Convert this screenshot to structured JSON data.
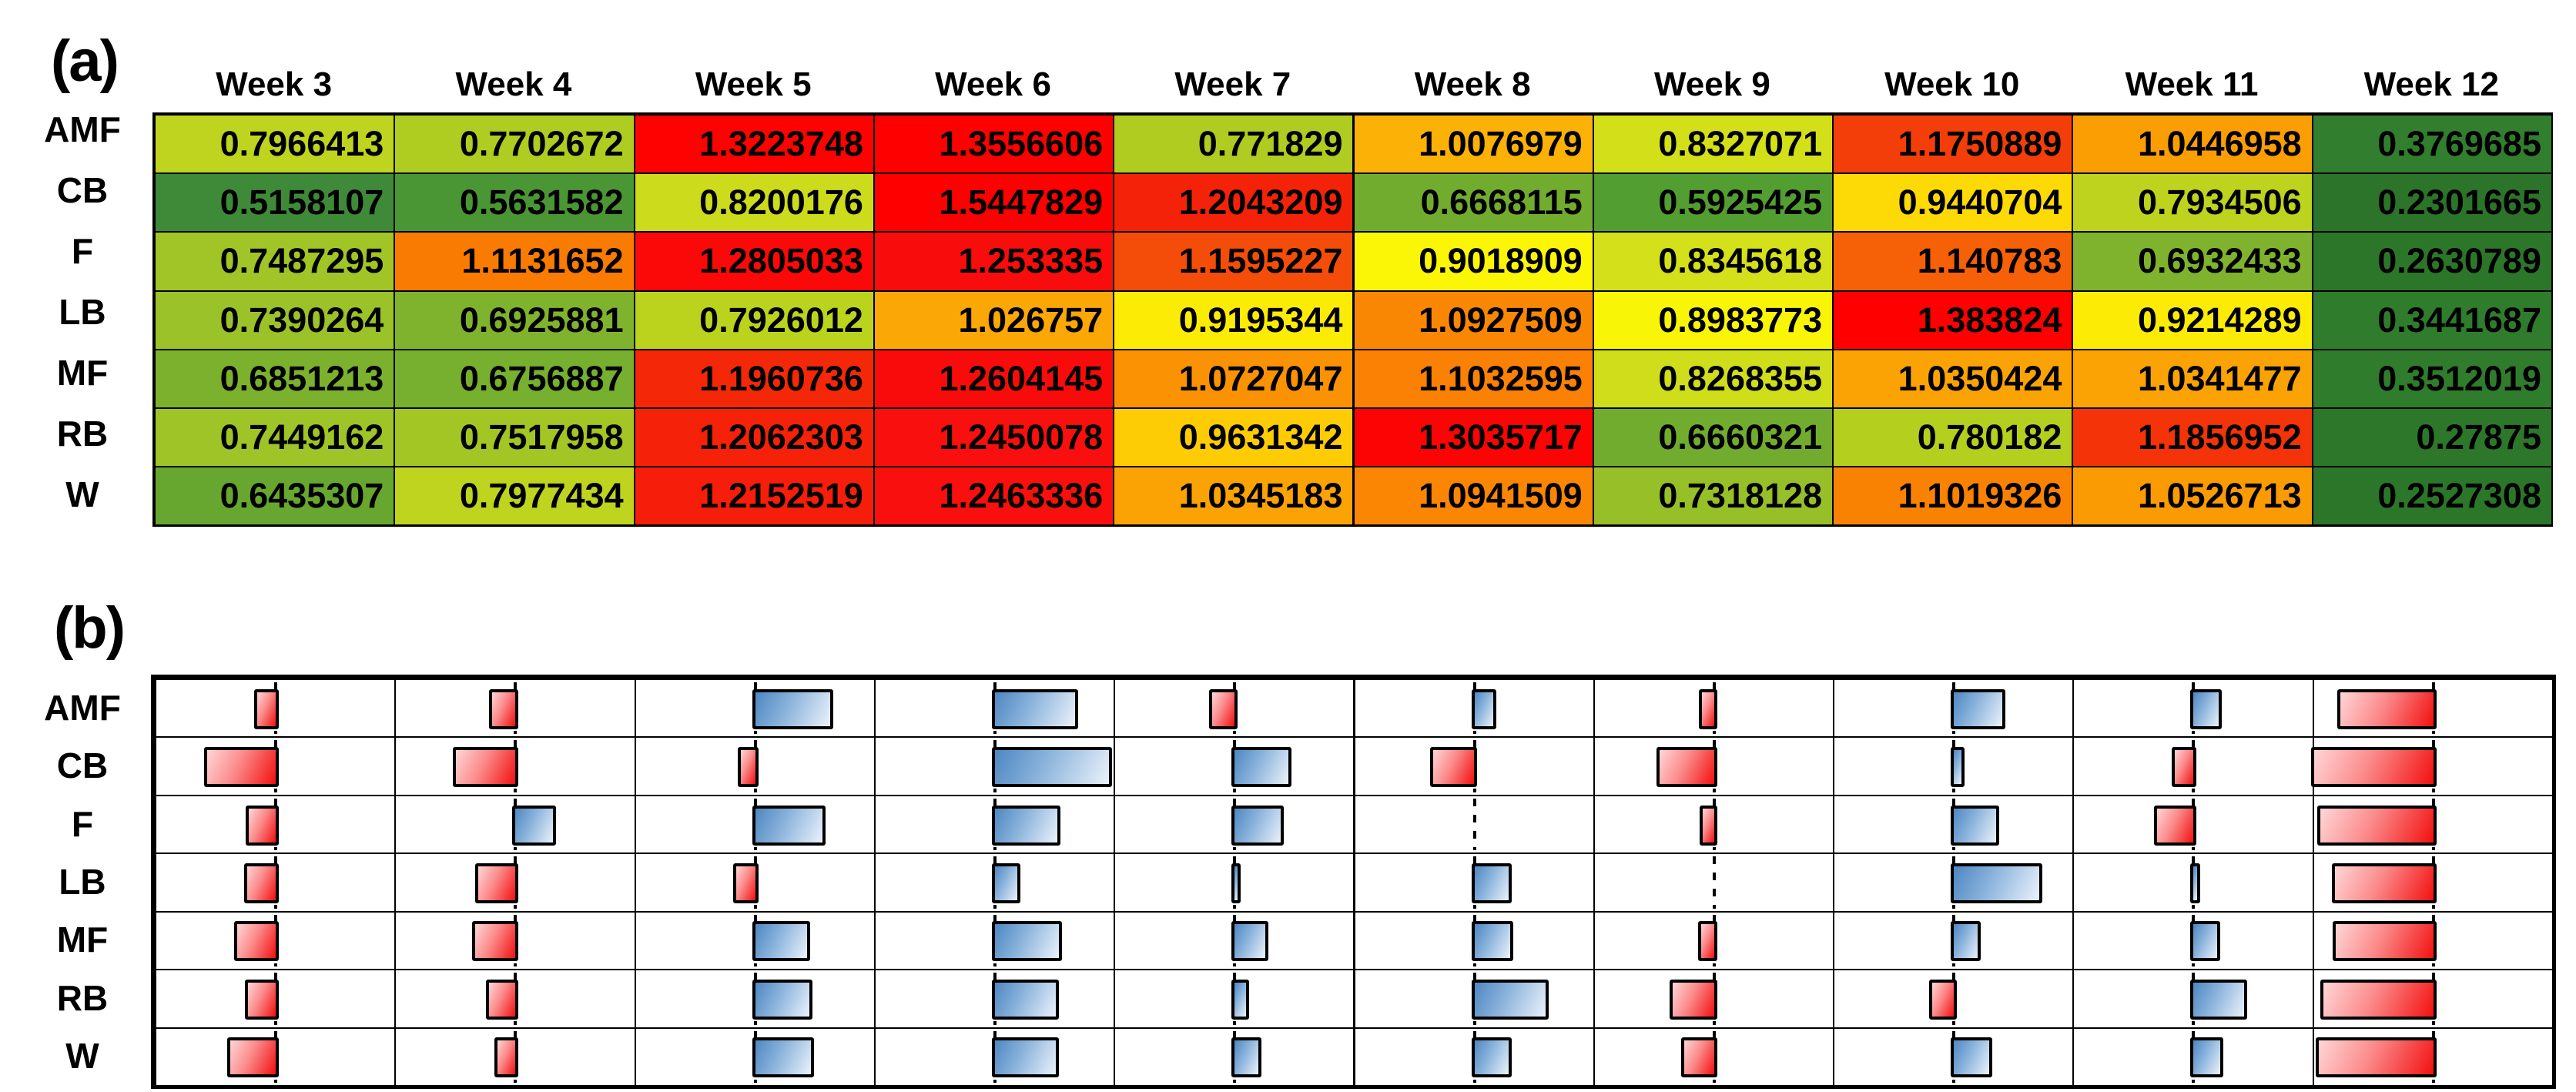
{
  "figure": {
    "panel_a_label": "(a)",
    "panel_b_label": "(b)"
  },
  "chart_data": [
    {
      "type": "heatmap",
      "title": "(a)",
      "columns": [
        "Week 3",
        "Week 4",
        "Week 5",
        "Week 6",
        "Week 7",
        "Week 8",
        "Week 9",
        "Week 10",
        "Week 11",
        "Week 12"
      ],
      "rows": [
        "AMF",
        "CB",
        "F",
        "LB",
        "MF",
        "RB",
        "W"
      ],
      "values": [
        [
          "0.7966413",
          "0.7702672",
          "1.3223748",
          "1.3556606",
          "0.771829",
          "1.0076979",
          "0.8327071",
          "1.1750889",
          "1.0446958",
          "0.3769685"
        ],
        [
          "0.5158107",
          "0.5631582",
          "0.8200176",
          "1.5447829",
          "1.2043209",
          "0.6668115",
          "0.5925425",
          "0.9440704",
          "0.7934506",
          "0.2301665"
        ],
        [
          "0.7487295",
          "1.1131652",
          "1.2805033",
          "1.253335",
          "1.1595227",
          "0.9018909",
          "0.8345618",
          "1.140783",
          "0.6932433",
          "0.2630789"
        ],
        [
          "0.7390264",
          "0.6925881",
          "0.7926012",
          "1.026757",
          "0.9195344",
          "1.0927509",
          "0.8983773",
          "1.383824",
          "0.9214289",
          "0.3441687"
        ],
        [
          "0.6851213",
          "0.6756887",
          "1.1960736",
          "1.2604145",
          "1.0727047",
          "1.1032595",
          "0.8268355",
          "1.0350424",
          "1.0341477",
          "0.3512019"
        ],
        [
          "0.7449162",
          "0.7517958",
          "1.2062303",
          "1.2450078",
          "0.9631342",
          "1.3035717",
          "0.6660321",
          "0.780182",
          "1.1856952",
          "0.27875"
        ],
        [
          "0.6435307",
          "0.7977434",
          "1.2152519",
          "1.2463336",
          "1.0345183",
          "1.0941509",
          "0.7318128",
          "1.1019326",
          "1.0526713",
          "0.2527308"
        ]
      ],
      "color_scale": {
        "description": "green-yellow-red heat scale, low=dark green, high=red",
        "stops": [
          [
            0.23,
            "#2B7429"
          ],
          [
            0.43,
            "#338230"
          ],
          [
            0.52,
            "#3F8A38"
          ],
          [
            0.6,
            "#55A030"
          ],
          [
            0.65,
            "#6AA830"
          ],
          [
            0.7,
            "#83B52C"
          ],
          [
            0.745,
            "#9FC427"
          ],
          [
            0.78,
            "#B5CF1F"
          ],
          [
            0.82,
            "#CCDB1C"
          ],
          [
            0.86,
            "#E3E914"
          ],
          [
            0.905,
            "#FCF705"
          ],
          [
            0.965,
            "#FDCB05"
          ],
          [
            1.01,
            "#FCB006"
          ],
          [
            1.04,
            "#FBA004"
          ],
          [
            1.075,
            "#FB9104"
          ],
          [
            1.115,
            "#F97A02"
          ],
          [
            1.16,
            "#F44D0A"
          ],
          [
            1.2,
            "#F42408"
          ],
          [
            1.25,
            "#F90D0D"
          ],
          [
            1.33,
            "#FE0000"
          ],
          [
            1.545,
            "#FF0000"
          ]
        ]
      }
    },
    {
      "type": "bar",
      "subtype": "deviation-from-baseline",
      "title": "(b)",
      "columns": [
        "Week 3",
        "Week 4",
        "Week 5",
        "Week 6",
        "Week 7",
        "Week 8",
        "Week 9",
        "Week 10",
        "Week 11",
        "Week 12"
      ],
      "rows": [
        "AMF",
        "CB",
        "F",
        "LB",
        "MF",
        "RB",
        "W"
      ],
      "baseline": 0.9009,
      "note": "bar length = value minus baseline; red bars extend left of dashed baseline (below), blue bars extend right (above); values shared with panel (a)",
      "colors": {
        "below_gradient": [
          "#FFD6D6",
          "#FB8A8A",
          "#F21010"
        ],
        "above_gradient": [
          "#4E87C2",
          "#86B0DA",
          "#EAF2FB"
        ],
        "baseline_line": "#000000"
      }
    }
  ]
}
